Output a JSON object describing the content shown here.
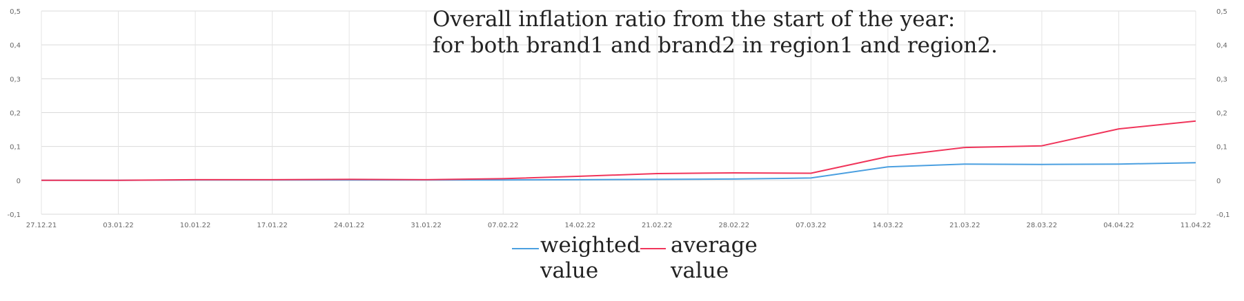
{
  "chart_data": {
    "type": "line",
    "title_lines": [
      "Overall inflation ratio from the start of the year:",
      "for both brand1 and brand2 in region1 and region2."
    ],
    "x": [
      "27.12.21",
      "03.01.22",
      "10.01.22",
      "17.01.22",
      "24.01.22",
      "31.01.22",
      "07.02.22",
      "14.02.22",
      "21.02.22",
      "28.02.22",
      "07.03.22",
      "14.03.22",
      "21.03.22",
      "28.03.22",
      "04.04.22",
      "11.04.22"
    ],
    "ylim": [
      -0.1,
      0.5
    ],
    "yticks": [
      "-0,1",
      "0",
      "0,1",
      "0,2",
      "0,3",
      "0,4",
      "0,5"
    ],
    "grid": true,
    "legend_position": "bottom",
    "series": [
      {
        "name": "weighted value",
        "legend_lines": [
          "weighted",
          "value"
        ],
        "color": "#4a9fe0",
        "values": [
          0,
          0,
          0.001,
          0.001,
          0.001,
          0.001,
          0.001,
          0.002,
          0.003,
          0.004,
          0.007,
          0.04,
          0.048,
          0.047,
          0.048,
          0.052
        ]
      },
      {
        "name": "average value",
        "legend_lines": [
          "average",
          "value"
        ],
        "color": "#f0345a",
        "values": [
          0,
          0,
          0.002,
          0.002,
          0.003,
          0.002,
          0.005,
          0.012,
          0.02,
          0.022,
          0.021,
          0.07,
          0.097,
          0.102,
          0.152,
          0.175
        ]
      }
    ]
  }
}
